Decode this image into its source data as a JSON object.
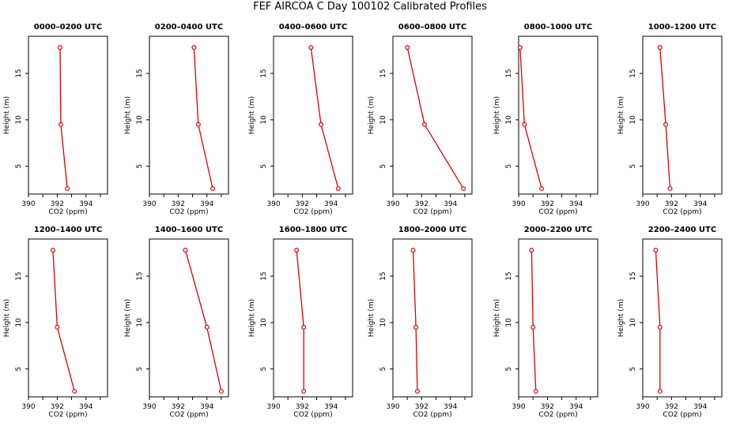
{
  "title": "FEF AIRCOA C  Day 100102  Calibrated Profiles",
  "chart_data": {
    "type": "line",
    "xlabel": "CO2 (ppm)",
    "ylabel": "Height (m)",
    "xlim": [
      390,
      395.5
    ],
    "ylim": [
      2,
      19
    ],
    "x_ticks": [
      "390",
      "392",
      "394"
    ],
    "y_ticks": [
      "5",
      "10",
      "15"
    ],
    "series_color": "#dd0000",
    "panels": [
      {
        "title": "0000–0200 UTC",
        "points": [
          [
            392.2,
            17.8
          ],
          [
            392.25,
            9.5
          ],
          [
            392.7,
            2.6
          ]
        ]
      },
      {
        "title": "0200–0400 UTC",
        "points": [
          [
            393.1,
            17.8
          ],
          [
            393.4,
            9.5
          ],
          [
            394.4,
            2.6
          ]
        ]
      },
      {
        "title": "0400–0600 UTC",
        "points": [
          [
            392.6,
            17.8
          ],
          [
            393.3,
            9.5
          ],
          [
            394.5,
            2.6
          ]
        ]
      },
      {
        "title": "0600–0800 UTC",
        "points": [
          [
            391.0,
            17.8
          ],
          [
            392.2,
            9.5
          ],
          [
            394.9,
            2.6
          ]
        ]
      },
      {
        "title": "0800–1000 UTC",
        "points": [
          [
            390.1,
            17.8
          ],
          [
            390.4,
            9.5
          ],
          [
            391.6,
            2.6
          ]
        ]
      },
      {
        "title": "1000–1200 UTC",
        "points": [
          [
            391.2,
            17.8
          ],
          [
            391.6,
            9.5
          ],
          [
            391.9,
            2.6
          ]
        ]
      },
      {
        "title": "1200–1400 UTC",
        "points": [
          [
            391.7,
            17.8
          ],
          [
            392.0,
            9.5
          ],
          [
            393.2,
            2.6
          ]
        ]
      },
      {
        "title": "1400–1600 UTC",
        "points": [
          [
            392.5,
            17.8
          ],
          [
            394.0,
            9.5
          ],
          [
            395.0,
            2.6
          ]
        ]
      },
      {
        "title": "1600–1800 UTC",
        "points": [
          [
            391.6,
            17.8
          ],
          [
            392.1,
            9.5
          ],
          [
            392.1,
            2.6
          ]
        ]
      },
      {
        "title": "1800–2000 UTC",
        "points": [
          [
            391.4,
            17.8
          ],
          [
            391.6,
            9.5
          ],
          [
            391.7,
            2.6
          ]
        ]
      },
      {
        "title": "2000–2200 UTC",
        "points": [
          [
            390.9,
            17.8
          ],
          [
            391.0,
            9.5
          ],
          [
            391.2,
            2.6
          ]
        ]
      },
      {
        "title": "2200–2400 UTC",
        "points": [
          [
            390.9,
            17.8
          ],
          [
            391.2,
            9.5
          ],
          [
            391.2,
            2.6
          ]
        ]
      }
    ]
  }
}
